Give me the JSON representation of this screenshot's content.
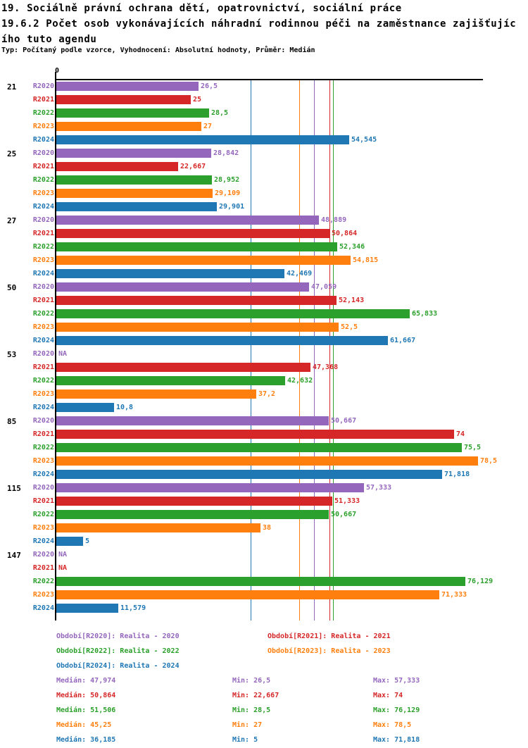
{
  "title": {
    "line1": "19. Sociálně právní ochrana dětí, opatrovnictví, sociální práce",
    "line2": "19.6.2 Počet osob vykonávajících náhradní rodinnou péči na zaměstnance zajišťujíc",
    "line3": "ího tuto agendu"
  },
  "subtitle": "Typ: Počítaný podle vzorce, Vyhodnocení: Absolutní hodnoty, Průměr: Medián",
  "axis": {
    "zero_label": "0",
    "xlim": [
      0,
      79
    ]
  },
  "chart_data": {
    "type": "bar",
    "orientation": "horizontal",
    "title": "19.6.2 Počet osob vykonávajících náhradní rodinnou péči na zaměstnance zajišťujícího tuto agendu",
    "xlabel": "",
    "ylabel": "",
    "xlim": [
      0,
      79
    ],
    "grid": false,
    "categories": [
      "21",
      "25",
      "27",
      "50",
      "53",
      "85",
      "115",
      "147"
    ],
    "series": [
      {
        "name": "R2020",
        "color": "#9467bd",
        "median": 47.974,
        "values": [
          26.5,
          28.842,
          48.889,
          47.059,
          null,
          50.667,
          57.333,
          null
        ],
        "labels": [
          "26,5",
          "28,842",
          "48,889",
          "47,059",
          "NA",
          "50,667",
          "57,333",
          "NA"
        ]
      },
      {
        "name": "R2021",
        "color": "#d62728",
        "median": 50.864,
        "values": [
          25,
          22.667,
          50.864,
          52.143,
          47.368,
          74,
          51.333,
          null
        ],
        "labels": [
          "25",
          "22,667",
          "50,864",
          "52,143",
          "47,368",
          "74",
          "51,333",
          "NA"
        ]
      },
      {
        "name": "R2022",
        "color": "#2ca02c",
        "median": 51.506,
        "values": [
          28.5,
          28.952,
          52.346,
          65.833,
          42.632,
          75.5,
          50.667,
          76.129
        ],
        "labels": [
          "28,5",
          "28,952",
          "52,346",
          "65,833",
          "42,632",
          "75,5",
          "50,667",
          "76,129"
        ]
      },
      {
        "name": "R2023",
        "color": "#ff7f0e",
        "median": 45.25,
        "values": [
          27,
          29.109,
          54.815,
          52.5,
          37.2,
          78.5,
          38,
          71.333
        ],
        "labels": [
          "27",
          "29,109",
          "54,815",
          "52,5",
          "37,2",
          "78,5",
          "38",
          "71,333"
        ]
      },
      {
        "name": "R2024",
        "color": "#1f77b4",
        "median": 36.185,
        "values": [
          54.545,
          29.901,
          42.469,
          61.667,
          10.8,
          71.818,
          5,
          11.579
        ],
        "labels": [
          "54,545",
          "29,901",
          "42,469",
          "61,667",
          "10,8",
          "71,818",
          "5",
          "11,579"
        ]
      }
    ]
  },
  "legend": [
    {
      "label": "Období[R2020]: Realita - 2020",
      "color": "#9467bd"
    },
    {
      "label": "Období[R2021]: Realita - 2021",
      "color": "#d62728"
    },
    {
      "label": "Období[R2022]: Realita - 2022",
      "color": "#2ca02c"
    },
    {
      "label": "Období[R2023]: Realita - 2023",
      "color": "#ff7f0e"
    },
    {
      "label": "Období[R2024]: Realita - 2024",
      "color": "#1f77b4"
    }
  ],
  "stats": [
    {
      "color": "#9467bd",
      "median": "Medián: 47,974",
      "min": "Min: 26,5",
      "max": "Max: 57,333"
    },
    {
      "color": "#d62728",
      "median": "Medián: 50,864",
      "min": "Min: 22,667",
      "max": "Max: 74"
    },
    {
      "color": "#2ca02c",
      "median": "Medián: 51,506",
      "min": "Min: 28,5",
      "max": "Max: 76,129"
    },
    {
      "color": "#ff7f0e",
      "median": "Medián: 45,25",
      "min": "Min: 27",
      "max": "Max: 78,5"
    },
    {
      "color": "#1f77b4",
      "median": "Medián: 36,185",
      "min": "Min: 5",
      "max": "Max: 71,818"
    }
  ]
}
